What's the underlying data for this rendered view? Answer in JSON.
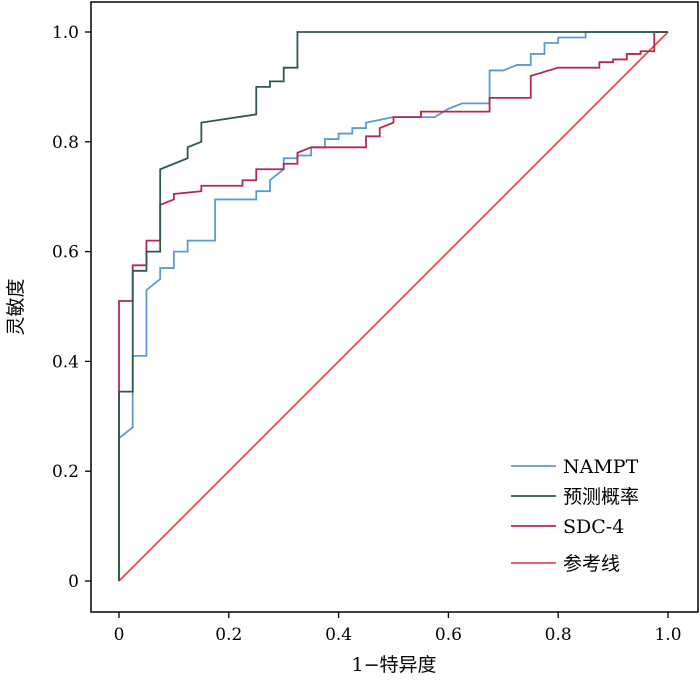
{
  "chart_data": {
    "type": "line",
    "title": "",
    "xlabel": "1−特异度",
    "ylabel": "灵敏度",
    "xlim": [
      0,
      1
    ],
    "ylim": [
      0,
      1
    ],
    "xticks": [
      "0",
      "0.2",
      "0.4",
      "0.6",
      "0.8",
      "1.0"
    ],
    "yticks": [
      "0",
      "0.2",
      "0.4",
      "0.6",
      "0.8",
      "1.0"
    ],
    "grid": false,
    "legend_position": "bottom-right",
    "series": [
      {
        "name": "NAMPT",
        "color": "#5b9bd5",
        "points": [
          [
            0,
            0
          ],
          [
            0,
            0.26
          ],
          [
            0.025,
            0.28
          ],
          [
            0.025,
            0.41
          ],
          [
            0.05,
            0.41
          ],
          [
            0.05,
            0.53
          ],
          [
            0.075,
            0.55
          ],
          [
            0.075,
            0.57
          ],
          [
            0.1,
            0.57
          ],
          [
            0.1,
            0.6
          ],
          [
            0.125,
            0.6
          ],
          [
            0.125,
            0.62
          ],
          [
            0.175,
            0.62
          ],
          [
            0.175,
            0.695
          ],
          [
            0.25,
            0.695
          ],
          [
            0.25,
            0.71
          ],
          [
            0.275,
            0.71
          ],
          [
            0.275,
            0.73
          ],
          [
            0.3,
            0.75
          ],
          [
            0.3,
            0.77
          ],
          [
            0.325,
            0.77
          ],
          [
            0.325,
            0.775
          ],
          [
            0.35,
            0.775
          ],
          [
            0.35,
            0.79
          ],
          [
            0.375,
            0.79
          ],
          [
            0.375,
            0.805
          ],
          [
            0.4,
            0.805
          ],
          [
            0.4,
            0.815
          ],
          [
            0.425,
            0.815
          ],
          [
            0.425,
            0.825
          ],
          [
            0.45,
            0.825
          ],
          [
            0.45,
            0.835
          ],
          [
            0.5,
            0.845
          ],
          [
            0.575,
            0.845
          ],
          [
            0.6,
            0.86
          ],
          [
            0.625,
            0.87
          ],
          [
            0.675,
            0.87
          ],
          [
            0.675,
            0.93
          ],
          [
            0.7,
            0.93
          ],
          [
            0.725,
            0.94
          ],
          [
            0.75,
            0.94
          ],
          [
            0.75,
            0.96
          ],
          [
            0.775,
            0.96
          ],
          [
            0.775,
            0.98
          ],
          [
            0.8,
            0.98
          ],
          [
            0.8,
            0.99
          ],
          [
            0.85,
            0.99
          ],
          [
            0.85,
            1.0
          ],
          [
            1.0,
            1.0
          ]
        ]
      },
      {
        "name": "预测概率",
        "color": "#2f5a47",
        "points": [
          [
            0,
            0
          ],
          [
            0,
            0.345
          ],
          [
            0.025,
            0.345
          ],
          [
            0.025,
            0.565
          ],
          [
            0.05,
            0.565
          ],
          [
            0.05,
            0.6
          ],
          [
            0.075,
            0.6
          ],
          [
            0.075,
            0.75
          ],
          [
            0.125,
            0.77
          ],
          [
            0.125,
            0.79
          ],
          [
            0.15,
            0.8
          ],
          [
            0.15,
            0.835
          ],
          [
            0.25,
            0.85
          ],
          [
            0.25,
            0.9
          ],
          [
            0.275,
            0.9
          ],
          [
            0.275,
            0.91
          ],
          [
            0.3,
            0.91
          ],
          [
            0.3,
            0.935
          ],
          [
            0.325,
            0.935
          ],
          [
            0.325,
            1.0
          ],
          [
            1.0,
            1.0
          ]
        ]
      },
      {
        "name": "SDC-4",
        "color": "#b5284f",
        "points": [
          [
            0,
            0
          ],
          [
            0,
            0.51
          ],
          [
            0.025,
            0.51
          ],
          [
            0.025,
            0.575
          ],
          [
            0.05,
            0.575
          ],
          [
            0.05,
            0.62
          ],
          [
            0.075,
            0.62
          ],
          [
            0.075,
            0.685
          ],
          [
            0.1,
            0.695
          ],
          [
            0.1,
            0.705
          ],
          [
            0.15,
            0.71
          ],
          [
            0.15,
            0.72
          ],
          [
            0.225,
            0.72
          ],
          [
            0.225,
            0.73
          ],
          [
            0.25,
            0.73
          ],
          [
            0.25,
            0.75
          ],
          [
            0.275,
            0.75
          ],
          [
            0.3,
            0.75
          ],
          [
            0.3,
            0.76
          ],
          [
            0.325,
            0.76
          ],
          [
            0.325,
            0.78
          ],
          [
            0.35,
            0.79
          ],
          [
            0.45,
            0.79
          ],
          [
            0.45,
            0.81
          ],
          [
            0.475,
            0.81
          ],
          [
            0.475,
            0.825
          ],
          [
            0.5,
            0.835
          ],
          [
            0.5,
            0.845
          ],
          [
            0.55,
            0.845
          ],
          [
            0.55,
            0.855
          ],
          [
            0.675,
            0.855
          ],
          [
            0.675,
            0.88
          ],
          [
            0.75,
            0.88
          ],
          [
            0.75,
            0.92
          ],
          [
            0.8,
            0.935
          ],
          [
            0.875,
            0.935
          ],
          [
            0.875,
            0.945
          ],
          [
            0.9,
            0.945
          ],
          [
            0.9,
            0.95
          ],
          [
            0.925,
            0.95
          ],
          [
            0.925,
            0.96
          ],
          [
            0.95,
            0.96
          ],
          [
            0.95,
            0.965
          ],
          [
            0.975,
            0.965
          ],
          [
            0.975,
            1.0
          ],
          [
            1.0,
            1.0
          ]
        ]
      },
      {
        "name": "参考线",
        "color": "#e0504f",
        "points": [
          [
            0,
            0
          ],
          [
            1,
            1
          ]
        ]
      }
    ]
  }
}
